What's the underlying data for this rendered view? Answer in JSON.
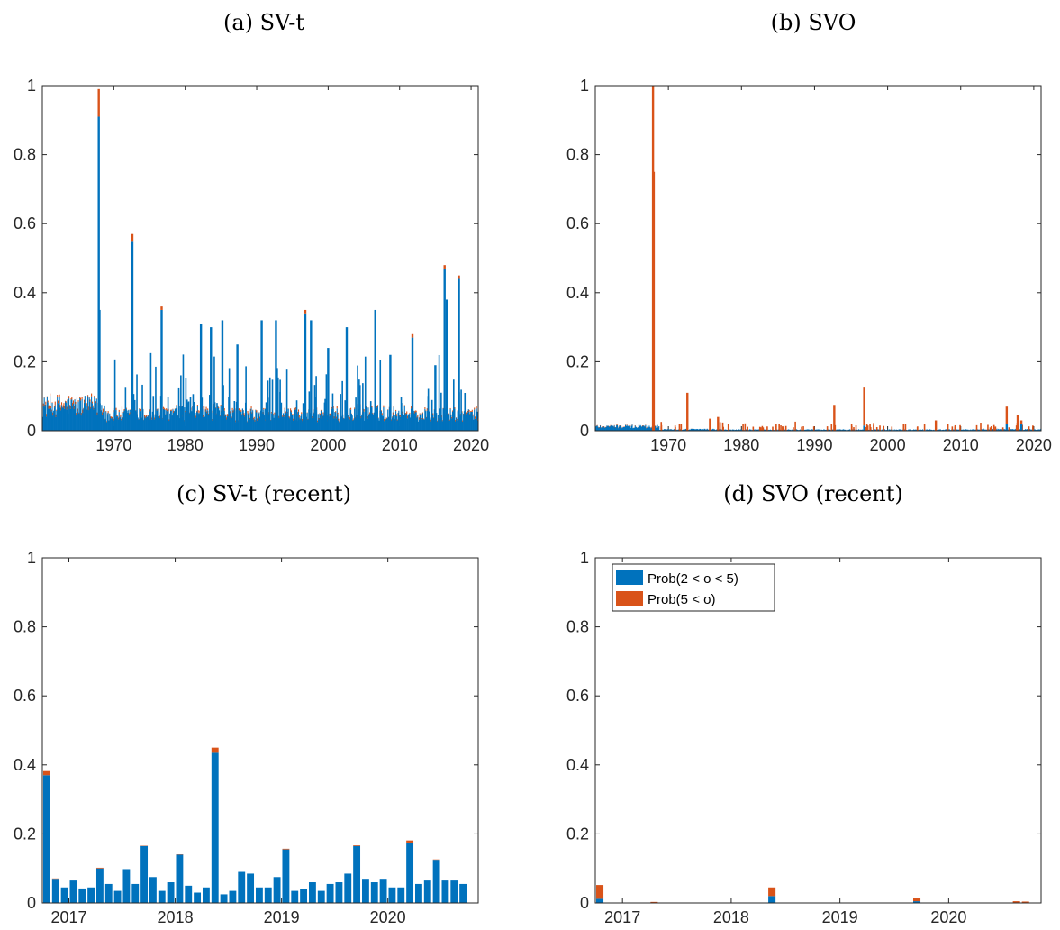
{
  "colors": {
    "blue": "#0072BD",
    "orange": "#D95319",
    "axis": "#262626"
  },
  "chart_data": [
    {
      "id": "a",
      "type": "bar",
      "stacked": true,
      "title": "(a) SV-t",
      "xlim": [
        1960,
        2021
      ],
      "ylim": [
        0,
        1
      ],
      "xticks": [
        1970,
        1980,
        1990,
        2000,
        2010,
        2020
      ],
      "yticks": [
        0,
        0.2,
        0.4,
        0.6,
        0.8,
        1
      ],
      "ytick_labels": [
        "0",
        "0.2",
        "0.4",
        "0.6",
        "0.8",
        "1"
      ],
      "baseline_level": [
        0.07,
        0.045,
        0.05,
        0.045,
        0.045,
        0.05,
        0.045
      ],
      "series": [
        {
          "name": "Prob(2 < o < 5)",
          "color": "#0072BD"
        },
        {
          "name": "Prob(5 < o)",
          "color": "#D95319"
        }
      ],
      "spikes": [
        {
          "x": 1967.9,
          "y": 0.91,
          "o": 0.08
        },
        {
          "x": 1968.0,
          "y": 0.35,
          "o": 0.0
        },
        {
          "x": 1972.6,
          "y": 0.55,
          "o": 0.02
        },
        {
          "x": 1976.7,
          "y": 0.35,
          "o": 0.01
        },
        {
          "x": 1982.2,
          "y": 0.31,
          "o": 0.0
        },
        {
          "x": 1983.6,
          "y": 0.3,
          "o": 0.0
        },
        {
          "x": 1985.2,
          "y": 0.32,
          "o": 0.0
        },
        {
          "x": 1987.3,
          "y": 0.25,
          "o": 0.0
        },
        {
          "x": 1990.7,
          "y": 0.32,
          "o": 0.0
        },
        {
          "x": 1992.7,
          "y": 0.32,
          "o": 0.0
        },
        {
          "x": 1996.8,
          "y": 0.34,
          "o": 0.01
        },
        {
          "x": 1997.6,
          "y": 0.32,
          "o": 0.0
        },
        {
          "x": 2000.0,
          "y": 0.24,
          "o": 0.0
        },
        {
          "x": 2002.6,
          "y": 0.3,
          "o": 0.0
        },
        {
          "x": 2006.6,
          "y": 0.35,
          "o": 0.0
        },
        {
          "x": 2008.7,
          "y": 0.22,
          "o": 0.0
        },
        {
          "x": 2011.8,
          "y": 0.27,
          "o": 0.01
        },
        {
          "x": 2015.0,
          "y": 0.19,
          "o": 0.0
        },
        {
          "x": 2016.3,
          "y": 0.47,
          "o": 0.01
        },
        {
          "x": 2016.6,
          "y": 0.38,
          "o": 0.0
        },
        {
          "x": 2018.3,
          "y": 0.44,
          "o": 0.01
        }
      ]
    },
    {
      "id": "b",
      "type": "bar",
      "stacked": true,
      "title": "(b) SVO",
      "xlim": [
        1960,
        2021
      ],
      "ylim": [
        0,
        1
      ],
      "xticks": [
        1970,
        1980,
        1990,
        2000,
        2010,
        2020
      ],
      "yticks": [
        0,
        0.2,
        0.4,
        0.6,
        0.8,
        1
      ],
      "ytick_labels": [
        "0",
        "0.2",
        "0.4",
        "0.6",
        "0.8",
        "1"
      ],
      "baseline_level": [
        0.012,
        0.004,
        0.003,
        0.003,
        0.003,
        0.003,
        0.004
      ],
      "series": [
        {
          "name": "Prob(2 < o < 5)",
          "color": "#0072BD"
        },
        {
          "name": "Prob(5 < o)",
          "color": "#D95319"
        }
      ],
      "spikes": [
        {
          "x": 1967.9,
          "y": 0.0,
          "o": 1.0
        },
        {
          "x": 1968.0,
          "y": 0.0,
          "o": 0.75
        },
        {
          "x": 1972.6,
          "y": 0.0,
          "o": 0.11
        },
        {
          "x": 1975.7,
          "y": 0.0,
          "o": 0.035
        },
        {
          "x": 1976.8,
          "y": 0.0,
          "o": 0.04
        },
        {
          "x": 1992.7,
          "y": 0.0,
          "o": 0.075
        },
        {
          "x": 1996.8,
          "y": 0.015,
          "o": 0.11
        },
        {
          "x": 2006.6,
          "y": 0.0,
          "o": 0.03
        },
        {
          "x": 2016.3,
          "y": 0.02,
          "o": 0.05
        },
        {
          "x": 2017.8,
          "y": 0.0,
          "o": 0.045
        },
        {
          "x": 2018.3,
          "y": 0.02,
          "o": 0.01
        }
      ]
    },
    {
      "id": "c",
      "type": "bar",
      "stacked": true,
      "title": "(c) SV-t (recent)",
      "xlim": [
        2016.75,
        2020.85
      ],
      "ylim": [
        0,
        1
      ],
      "xticks": [
        2017,
        2018,
        2019,
        2020
      ],
      "yticks": [
        0,
        0.2,
        0.4,
        0.6,
        0.8,
        1
      ],
      "ytick_labels": [
        "0",
        "0.2",
        "0.4",
        "0.6",
        "0.8",
        "1"
      ],
      "x_start": 2016.75,
      "x_step": 0.0833,
      "series": [
        {
          "name": "Prob(2 < o < 5)",
          "color": "#0072BD",
          "values": [
            0.37,
            0.07,
            0.045,
            0.065,
            0.042,
            0.045,
            0.1,
            0.055,
            0.035,
            0.098,
            0.055,
            0.165,
            0.075,
            0.035,
            0.06,
            0.14,
            0.05,
            0.03,
            0.045,
            0.435,
            0.025,
            0.035,
            0.09,
            0.085,
            0.045,
            0.045,
            0.075,
            0.155,
            0.035,
            0.04,
            0.06,
            0.035,
            0.055,
            0.06,
            0.085,
            0.165,
            0.07,
            0.06,
            0.07,
            0.045,
            0.045,
            0.175,
            0.055,
            0.065,
            0.125,
            0.065,
            0.065,
            0.055
          ]
        },
        {
          "name": "Prob(5 < o)",
          "color": "#D95319",
          "values": [
            0.012,
            0.001,
            0.0,
            0.0,
            0.0,
            0.0,
            0.002,
            0.0,
            0.0,
            0.0,
            0.0,
            0.001,
            0.0,
            0.0,
            0.0,
            0.001,
            0.0,
            0.0,
            0.0,
            0.015,
            0.0,
            0.0,
            0.0,
            0.0,
            0.0,
            0.0,
            0.0,
            0.002,
            0.0,
            0.0,
            0.0,
            0.0,
            0.0,
            0.0,
            0.0,
            0.002,
            0.0,
            0.0,
            0.0,
            0.0,
            0.0,
            0.006,
            0.0,
            0.0,
            0.001,
            0.0,
            0.0,
            0.0
          ]
        }
      ]
    },
    {
      "id": "d",
      "type": "bar",
      "stacked": true,
      "title": "(d) SVO (recent)",
      "xlim": [
        2016.75,
        2020.85
      ],
      "ylim": [
        0,
        1
      ],
      "xticks": [
        2017,
        2018,
        2019,
        2020
      ],
      "yticks": [
        0,
        0.2,
        0.4,
        0.6,
        0.8,
        1
      ],
      "ytick_labels": [
        "0",
        "0.2",
        "0.4",
        "0.6",
        "0.8",
        "1"
      ],
      "x_start": 2016.75,
      "x_step": 0.0833,
      "legend": {
        "position": "top-left",
        "entries": [
          "Prob(2 < o < 5)",
          "Prob(5 < o)"
        ]
      },
      "series": [
        {
          "name": "Prob(2 < o < 5)",
          "color": "#0072BD",
          "values": [
            0.012,
            0.0,
            0.0,
            0.0,
            0.0,
            0.0,
            0.0,
            0.0,
            0.0,
            0.0,
            0.0,
            0.0,
            0.0,
            0.0,
            0.0,
            0.0,
            0.0,
            0.0,
            0.0,
            0.02,
            0.0,
            0.0,
            0.0,
            0.0,
            0.0,
            0.0,
            0.0,
            0.0,
            0.0,
            0.0,
            0.0,
            0.0,
            0.0,
            0.0,
            0.0,
            0.005,
            0.0,
            0.0,
            0.0,
            0.0,
            0.0,
            0.0,
            0.0,
            0.0,
            0.0,
            0.0,
            0.0,
            0.0
          ]
        },
        {
          "name": "Prob(5 < o)",
          "color": "#D95319",
          "values": [
            0.04,
            0.0,
            0.0,
            0.0,
            0.0,
            0.0,
            0.003,
            0.0,
            0.0,
            0.0,
            0.0,
            0.0,
            0.0,
            0.0,
            0.0,
            0.0,
            0.0,
            0.0,
            0.0,
            0.025,
            0.0,
            0.0,
            0.0,
            0.0,
            0.0,
            0.0,
            0.0,
            0.0,
            0.0,
            0.0,
            0.0,
            0.0,
            0.0,
            0.0,
            0.0,
            0.008,
            0.0,
            0.0,
            0.0,
            0.0,
            0.0,
            0.0,
            0.0,
            0.0,
            0.0,
            0.0,
            0.005,
            0.004
          ]
        }
      ]
    }
  ]
}
